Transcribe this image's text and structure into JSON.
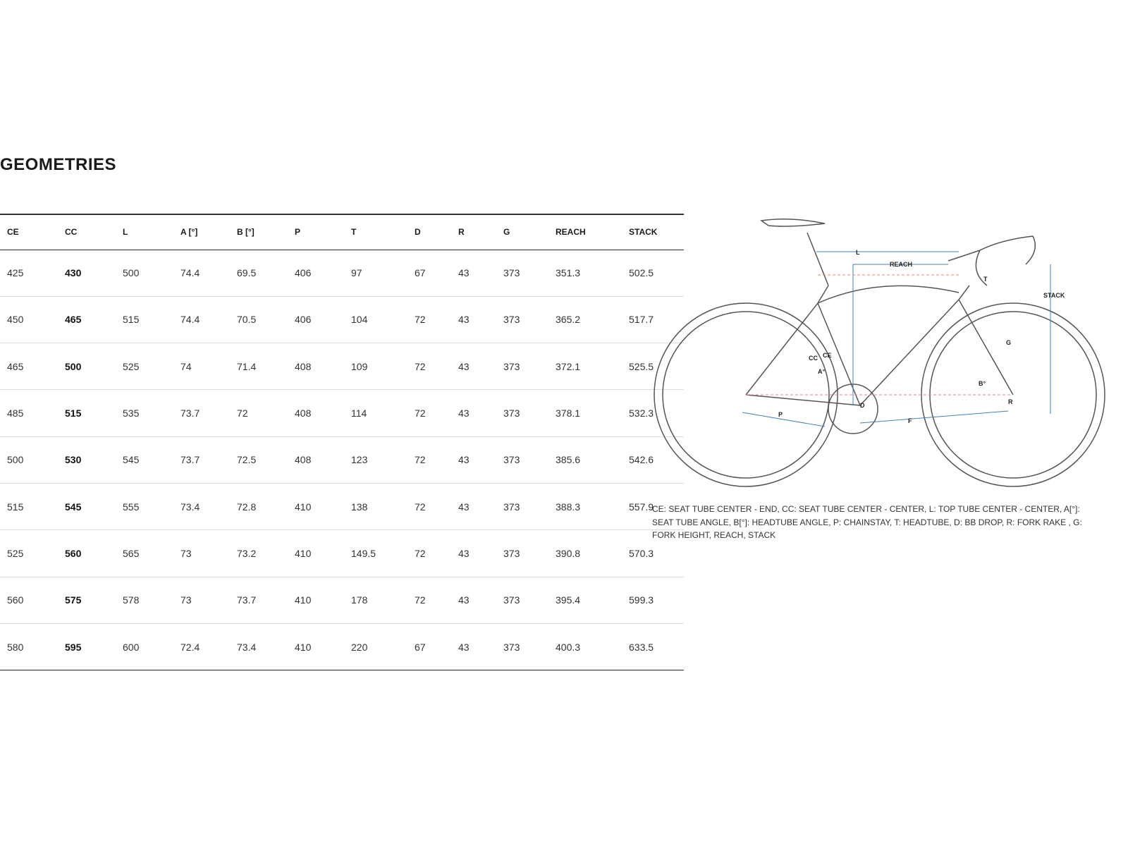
{
  "title": "GEOMETRIES",
  "table": {
    "headers": [
      "CE",
      "CC",
      "L",
      "A [°]",
      "B [°]",
      "P",
      "T",
      "D",
      "R",
      "G",
      "REACH",
      "STACK"
    ],
    "rows": [
      [
        "425",
        "430",
        "500",
        "74.4",
        "69.5",
        "406",
        "97",
        "67",
        "43",
        "373",
        "351.3",
        "502.5"
      ],
      [
        "450",
        "465",
        "515",
        "74.4",
        "70.5",
        "406",
        "104",
        "72",
        "43",
        "373",
        "365.2",
        "517.7"
      ],
      [
        "465",
        "500",
        "525",
        "74",
        "71.4",
        "408",
        "109",
        "72",
        "43",
        "373",
        "372.1",
        "525.5"
      ],
      [
        "485",
        "515",
        "535",
        "73.7",
        "72",
        "408",
        "114",
        "72",
        "43",
        "373",
        "378.1",
        "532.3"
      ],
      [
        "500",
        "530",
        "545",
        "73.7",
        "72.5",
        "408",
        "123",
        "72",
        "43",
        "373",
        "385.6",
        "542.6"
      ],
      [
        "515",
        "545",
        "555",
        "73.4",
        "72.8",
        "410",
        "138",
        "72",
        "43",
        "373",
        "388.3",
        "557.9"
      ],
      [
        "525",
        "560",
        "565",
        "73",
        "73.2",
        "410",
        "149.5",
        "72",
        "43",
        "373",
        "390.8",
        "570.3"
      ],
      [
        "560",
        "575",
        "578",
        "73",
        "73.7",
        "410",
        "178",
        "72",
        "43",
        "373",
        "395.4",
        "599.3"
      ],
      [
        "580",
        "595",
        "600",
        "72.4",
        "73.4",
        "410",
        "220",
        "67",
        "43",
        "373",
        "400.3",
        "633.5"
      ]
    ]
  },
  "diagram": {
    "labels": {
      "L": "L",
      "REACH": "REACH",
      "T": "T",
      "STACK": "STACK",
      "G": "G",
      "CC": "CC",
      "CE": "CE",
      "A": "A°",
      "D": "D",
      "B": "B°",
      "R": "R",
      "P": "P",
      "F": "F"
    },
    "colors": {
      "frame": "#555555",
      "dimension": "#4a7fb5",
      "reference": "#e08a80"
    }
  },
  "legend": "CE: SEAT TUBE CENTER - END, CC: SEAT TUBE CENTER - CENTER, L: TOP TUBE CENTER - CENTER, A[°]: SEAT TUBE ANGLE, B[°]: HEADTUBE ANGLE, P: CHAINSTAY, T: HEADTUBE, D: BB DROP, R: FORK RAKE , G: FORK HEIGHT, REACH, STACK"
}
